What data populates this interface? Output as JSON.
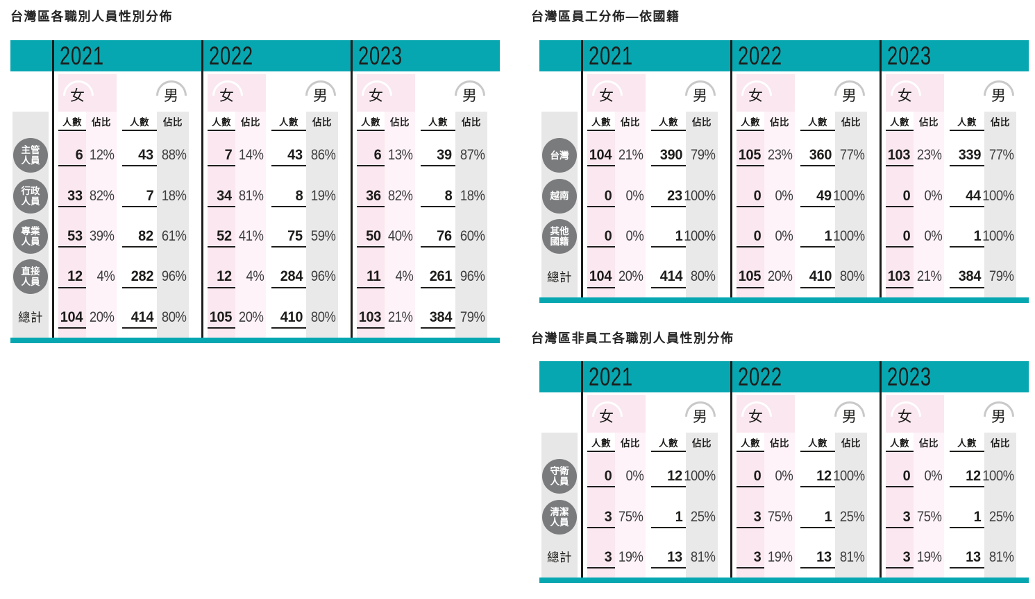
{
  "colors": {
    "teal": "#07a7b1",
    "female_block": "#fae7ef",
    "female_ratio_stripe": "#fdf3f8",
    "male_ratio_stripe": "#e9e9ea",
    "label_band": "#e7e7e7",
    "role_badge": "#7a7b7d",
    "ink": "#1d1d1b",
    "female_arc": "#ffffff",
    "male_arc": "#c9c9c9"
  },
  "years": [
    "2021",
    "2022",
    "2023"
  ],
  "gender_labels": {
    "female": "女",
    "male": "男"
  },
  "column_headers": {
    "count": "人數",
    "ratio": "佔比"
  },
  "tables": [
    {
      "title": "台灣區各職別人員性別分佈",
      "rows": [
        {
          "label": [
            "主管",
            "人員"
          ],
          "circle": true,
          "values": [
            [
              "6",
              "12%",
              "43",
              "88%"
            ],
            [
              "7",
              "14%",
              "43",
              "86%"
            ],
            [
              "6",
              "13%",
              "39",
              "87%"
            ]
          ]
        },
        {
          "label": [
            "行政",
            "人員"
          ],
          "circle": true,
          "values": [
            [
              "33",
              "82%",
              "7",
              "18%"
            ],
            [
              "34",
              "81%",
              "8",
              "19%"
            ],
            [
              "36",
              "82%",
              "8",
              "18%"
            ]
          ]
        },
        {
          "label": [
            "專業",
            "人員"
          ],
          "circle": true,
          "values": [
            [
              "53",
              "39%",
              "82",
              "61%"
            ],
            [
              "52",
              "41%",
              "75",
              "59%"
            ],
            [
              "50",
              "40%",
              "76",
              "60%"
            ]
          ]
        },
        {
          "label": [
            "直接",
            "人員"
          ],
          "circle": true,
          "values": [
            [
              "12",
              "4%",
              "282",
              "96%"
            ],
            [
              "12",
              "4%",
              "284",
              "96%"
            ],
            [
              "11",
              "4%",
              "261",
              "96%"
            ]
          ]
        },
        {
          "label": [
            "總計"
          ],
          "circle": false,
          "values": [
            [
              "104",
              "20%",
              "414",
              "80%"
            ],
            [
              "105",
              "20%",
              "410",
              "80%"
            ],
            [
              "103",
              "21%",
              "384",
              "79%"
            ]
          ]
        }
      ]
    },
    {
      "title": "台灣區員工分佈—依國籍",
      "rows": [
        {
          "label": [
            "台灣"
          ],
          "circle": true,
          "values": [
            [
              "104",
              "21%",
              "390",
              "79%"
            ],
            [
              "105",
              "23%",
              "360",
              "77%"
            ],
            [
              "103",
              "23%",
              "339",
              "77%"
            ]
          ]
        },
        {
          "label": [
            "越南"
          ],
          "circle": true,
          "values": [
            [
              "0",
              "0%",
              "23",
              "100%"
            ],
            [
              "0",
              "0%",
              "49",
              "100%"
            ],
            [
              "0",
              "0%",
              "44",
              "100%"
            ]
          ]
        },
        {
          "label": [
            "其他",
            "國籍"
          ],
          "circle": true,
          "values": [
            [
              "0",
              "0%",
              "1",
              "100%"
            ],
            [
              "0",
              "0%",
              "1",
              "100%"
            ],
            [
              "0",
              "0%",
              "1",
              "100%"
            ]
          ]
        },
        {
          "label": [
            "總計"
          ],
          "circle": false,
          "values": [
            [
              "104",
              "20%",
              "414",
              "80%"
            ],
            [
              "105",
              "20%",
              "410",
              "80%"
            ],
            [
              "103",
              "21%",
              "384",
              "79%"
            ]
          ]
        }
      ]
    },
    {
      "title": "台灣區非員工各職別人員性別分佈",
      "rows": [
        {
          "label": [
            "守衛",
            "人員"
          ],
          "circle": true,
          "values": [
            [
              "0",
              "0%",
              "12",
              "100%"
            ],
            [
              "0",
              "0%",
              "12",
              "100%"
            ],
            [
              "0",
              "0%",
              "12",
              "100%"
            ]
          ]
        },
        {
          "label": [
            "清潔",
            "人員"
          ],
          "circle": true,
          "values": [
            [
              "3",
              "75%",
              "1",
              "25%"
            ],
            [
              "3",
              "75%",
              "1",
              "25%"
            ],
            [
              "3",
              "75%",
              "1",
              "25%"
            ]
          ]
        },
        {
          "label": [
            "總計"
          ],
          "circle": false,
          "values": [
            [
              "3",
              "19%",
              "13",
              "81%"
            ],
            [
              "3",
              "19%",
              "13",
              "81%"
            ],
            [
              "3",
              "19%",
              "13",
              "81%"
            ]
          ]
        }
      ]
    }
  ]
}
